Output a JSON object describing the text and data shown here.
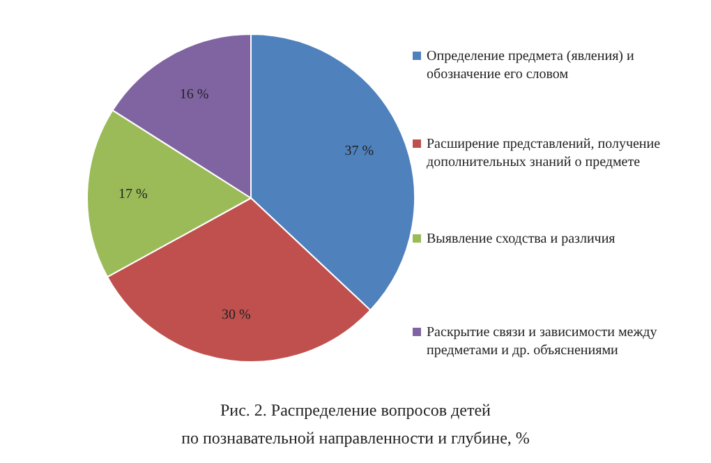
{
  "chart_data": {
    "type": "pie",
    "title": "Рис. 2. Распределение вопросов детей\nпо познавательной направленности и глубине, %",
    "categories": [
      "Определение предмета (явления) и обозначение его словом",
      "Расширение представлений, получение дополнительных знаний о предмете",
      "Выявление сходства и различия",
      "Раскрытие связи и зависимости между предметами и др. объяснениями"
    ],
    "values": [
      37,
      30,
      17,
      16
    ],
    "colors": [
      "#4f81bd",
      "#c0504d",
      "#9bbb59",
      "#8064a2"
    ],
    "value_labels": [
      "37 %",
      "30 %",
      "17 %",
      "16 %"
    ],
    "legend": "right"
  }
}
